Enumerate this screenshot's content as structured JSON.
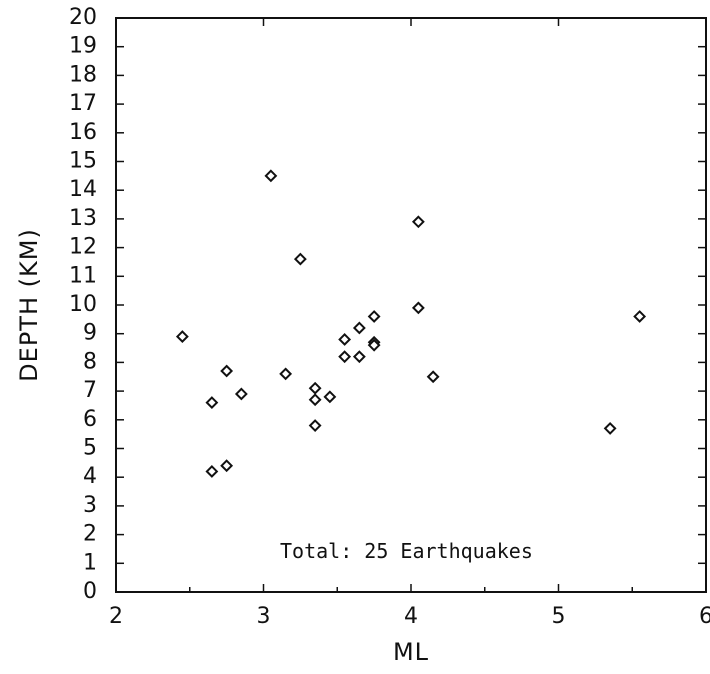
{
  "chart_data": {
    "type": "scatter",
    "title": "",
    "xlabel": "ML",
    "ylabel": "DEPTH (KM)",
    "xlim": [
      2,
      6
    ],
    "ylim": [
      0,
      20
    ],
    "x_ticks": [
      "2",
      "3",
      "4",
      "5",
      "6"
    ],
    "y_ticks": [
      "0",
      "1",
      "2",
      "3",
      "4",
      "5",
      "6",
      "7",
      "8",
      "9",
      "10",
      "11",
      "12",
      "13",
      "14",
      "15",
      "16",
      "17",
      "18",
      "19",
      "20"
    ],
    "grid": false,
    "marker": "diamond",
    "annotation": "Total: 25 Earthquakes",
    "series": [
      {
        "points": [
          {
            "x": 2.45,
            "y": 8.9
          },
          {
            "x": 2.65,
            "y": 6.6
          },
          {
            "x": 2.65,
            "y": 4.2
          },
          {
            "x": 2.75,
            "y": 7.7
          },
          {
            "x": 2.75,
            "y": 4.4
          },
          {
            "x": 2.85,
            "y": 6.9
          },
          {
            "x": 3.05,
            "y": 14.5
          },
          {
            "x": 3.15,
            "y": 7.6
          },
          {
            "x": 3.25,
            "y": 11.6
          },
          {
            "x": 3.35,
            "y": 7.1
          },
          {
            "x": 3.35,
            "y": 6.7
          },
          {
            "x": 3.35,
            "y": 5.8
          },
          {
            "x": 3.45,
            "y": 6.8
          },
          {
            "x": 3.55,
            "y": 8.8
          },
          {
            "x": 3.55,
            "y": 8.2
          },
          {
            "x": 3.65,
            "y": 9.2
          },
          {
            "x": 3.65,
            "y": 8.2
          },
          {
            "x": 3.75,
            "y": 9.6
          },
          {
            "x": 3.75,
            "y": 8.7
          },
          {
            "x": 3.75,
            "y": 8.6
          },
          {
            "x": 4.05,
            "y": 12.9
          },
          {
            "x": 4.05,
            "y": 9.9
          },
          {
            "x": 4.15,
            "y": 7.5
          },
          {
            "x": 5.35,
            "y": 5.7
          },
          {
            "x": 5.55,
            "y": 9.6
          }
        ]
      }
    ]
  }
}
